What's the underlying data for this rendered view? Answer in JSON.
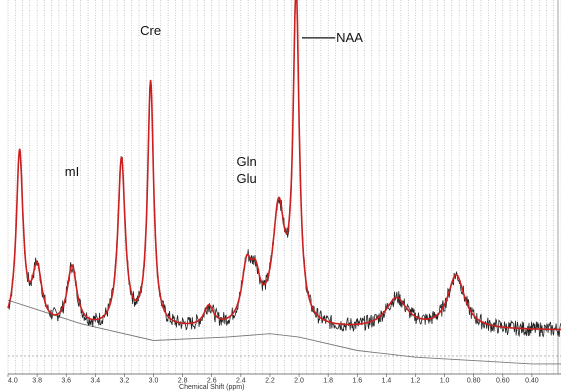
{
  "chart_data": {
    "type": "line",
    "title": "",
    "xlabel": "Chemical Shift (ppm)",
    "ylabel": "",
    "x_reversed": true,
    "xlim": [
      4.0,
      0.2
    ],
    "x_ticks": [
      "4.0",
      "3.8",
      "3.6",
      "3.4",
      "3.2",
      "3.0",
      "2.8",
      "2.6",
      "2.4",
      "2.2",
      "2.0",
      "1.8",
      "1.6",
      "1.4",
      "1.2",
      "1.0",
      "0.80",
      "0.60",
      "0.40"
    ],
    "x_tick_values": [
      4.0,
      3.8,
      3.6,
      3.4,
      3.2,
      3.0,
      2.8,
      2.6,
      2.4,
      2.2,
      2.0,
      1.8,
      1.6,
      1.4,
      1.2,
      1.0,
      0.8,
      0.6,
      0.4
    ],
    "ylim": [
      -0.05,
      1.05
    ],
    "grid": "vertical dotted lines at every 0.05 ppm",
    "colors": {
      "spectrum": "#222222",
      "fit": "#cc1f1f",
      "baseline": "#7a7a7a",
      "grid": "#9a9a9a"
    },
    "peaks": [
      {
        "label": "mI",
        "ppm": 3.56,
        "amp": 0.18,
        "width": 0.04
      },
      {
        "label": "Cre",
        "ppm": 3.02,
        "amp": 0.73,
        "width": 0.025
      },
      {
        "label": "Gln",
        "ppm": 2.36,
        "amp": 0.16,
        "width": 0.04
      },
      {
        "label": "Glu",
        "ppm": 2.3,
        "amp": 0.12,
        "width": 0.04
      },
      {
        "label": "NAA",
        "ppm": 2.02,
        "amp": 0.97,
        "width": 0.025
      },
      {
        "label": "",
        "ppm": 3.92,
        "amp": 0.52,
        "width": 0.028
      },
      {
        "label": "",
        "ppm": 3.8,
        "amp": 0.17,
        "width": 0.04
      },
      {
        "label": "",
        "ppm": 3.22,
        "amp": 0.5,
        "width": 0.03
      },
      {
        "label": "",
        "ppm": 2.62,
        "amp": 0.06,
        "width": 0.04
      },
      {
        "label": "",
        "ppm": 2.14,
        "amp": 0.34,
        "width": 0.05
      },
      {
        "label": "",
        "ppm": 1.33,
        "amp": 0.09,
        "width": 0.09
      },
      {
        "label": "",
        "ppm": 0.92,
        "amp": 0.16,
        "width": 0.07
      }
    ],
    "spectrum_floor": 0.08,
    "baseline_curve": {
      "x": [
        4.0,
        3.5,
        3.0,
        2.5,
        2.2,
        2.0,
        1.6,
        1.2,
        0.8,
        0.4,
        0.2
      ],
      "y": [
        0.17,
        0.1,
        0.05,
        0.06,
        0.07,
        0.06,
        0.02,
        0.0,
        -0.01,
        -0.02,
        -0.02
      ]
    },
    "annotations": [
      {
        "text": "mI",
        "ppm": 3.56,
        "y": 0.54
      },
      {
        "text": "Cre",
        "ppm": 3.02,
        "y": 0.96
      },
      {
        "text": "Gln",
        "ppm": 2.36,
        "y": 0.57
      },
      {
        "text": "Glu",
        "ppm": 2.36,
        "y": 0.52
      },
      {
        "text": "NAA",
        "ppm": 1.8,
        "y": 0.94,
        "leader_from_ppm": 1.98
      }
    ]
  }
}
